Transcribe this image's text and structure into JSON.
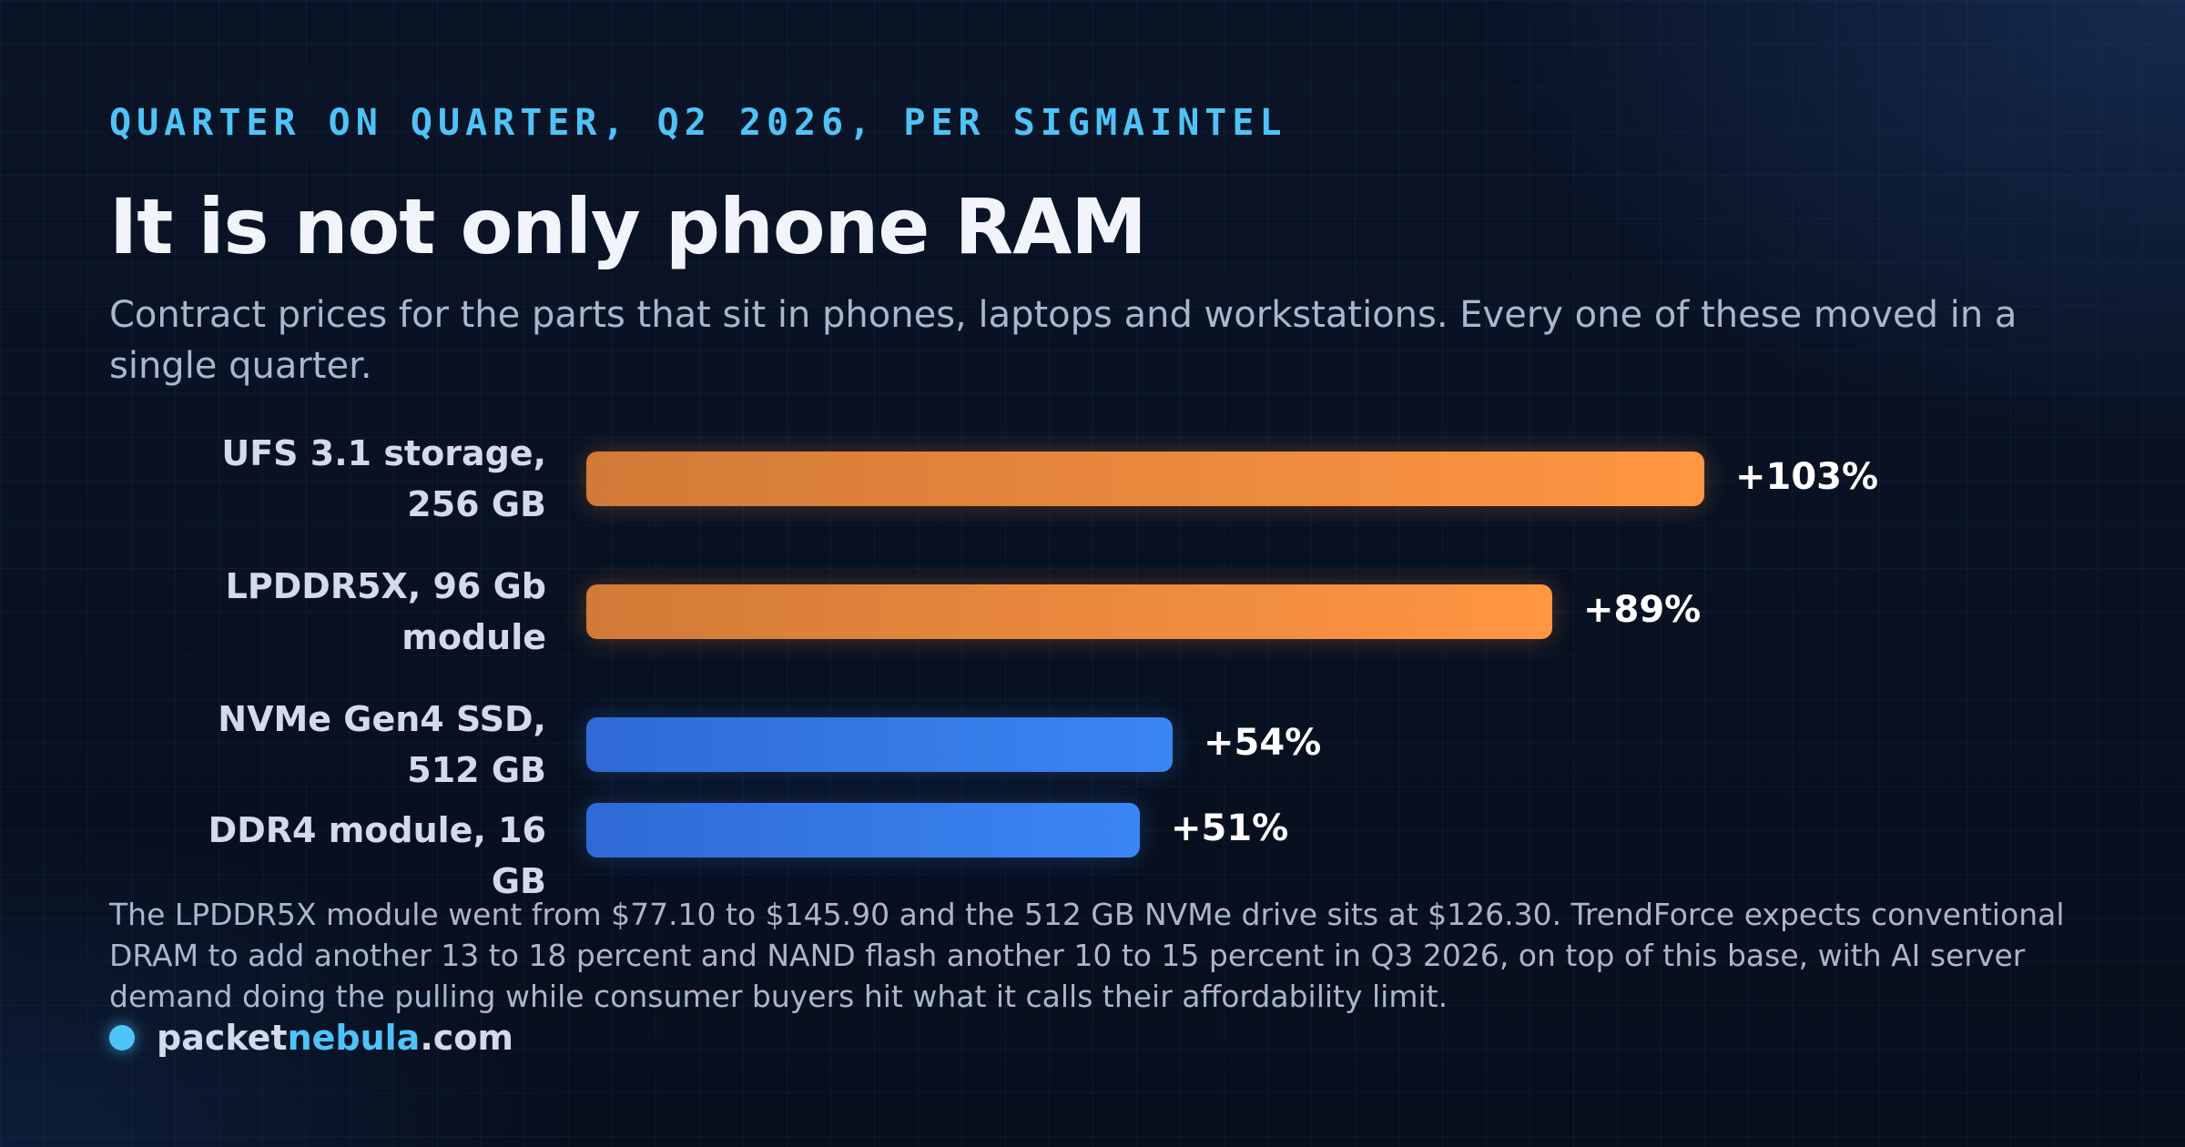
{
  "kicker": "QUARTER ON QUARTER, Q2 2026, PER SIGMAINTEL",
  "title": "It is not only phone RAM",
  "subtitle": "Contract prices for the parts that sit in phones, laptops and workstations. Every one of these moved in a single quarter.",
  "footnote": "The LPDDR5X module went from $77.10 to $145.90 and the 512 GB NVMe drive sits at $126.30. TrendForce expects conventional DRAM to add another 13 to 18 percent and NAND flash another 10 to 15 percent in Q3 2026, on top of this base, with AI server demand doing the pulling while consumer buyers hit what it calls their affordability limit.",
  "brand": {
    "prefix": "packet",
    "accent": "nebula",
    "suffix": ".com"
  },
  "colors": {
    "orange": "#ff9642",
    "blue": "#3a86f4",
    "accent": "#4fc3f7"
  },
  "chart_data": {
    "type": "bar",
    "orientation": "horizontal",
    "categories": [
      "UFS 3.1 storage, 256 GB",
      "LPDDR5X, 96 Gb module",
      "NVMe Gen4 SSD, 512 GB",
      "DDR4 module, 16 GB"
    ],
    "values": [
      103,
      89,
      54,
      51
    ],
    "labels": [
      "+103%",
      "+89%",
      "+54%",
      "+51%"
    ],
    "bar_colors": [
      "orange",
      "orange",
      "blue",
      "blue"
    ],
    "unit": "%",
    "grid": false,
    "legend": "none"
  }
}
